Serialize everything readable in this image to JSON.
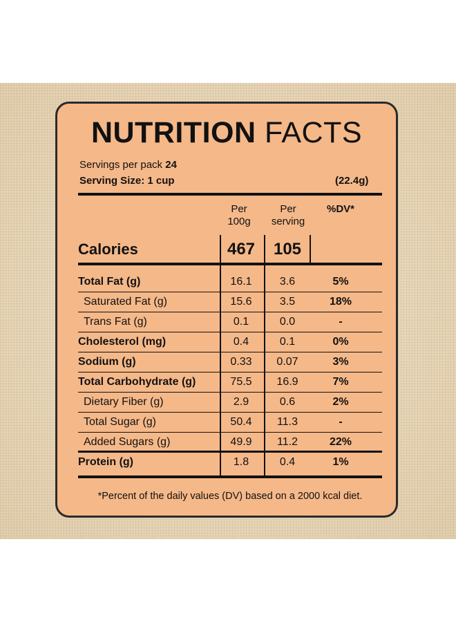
{
  "title": {
    "bold": "NUTRITION",
    "light": "FACTS"
  },
  "servings_per_pack": {
    "label": "Servings per pack",
    "value": "24"
  },
  "serving_size": {
    "label": "Serving Size: 1 cup",
    "grams": "(22.4g)"
  },
  "columns": {
    "per100g": "Per 100g",
    "per_serving": "Per serving",
    "dv": "%DV*"
  },
  "calories": {
    "label": "Calories",
    "per100g": "467",
    "per_serving": "105"
  },
  "rows": [
    {
      "label": "Total Fat (g)",
      "per100g": "16.1",
      "per_serving": "3.6",
      "dv": "5%"
    },
    {
      "label": "Saturated Fat (g)",
      "per100g": "15.6",
      "per_serving": "3.5",
      "dv": "18%"
    },
    {
      "label": "Trans Fat (g)",
      "per100g": "0.1",
      "per_serving": "0.0",
      "dv": "-"
    },
    {
      "label": "Cholesterol (mg)",
      "per100g": "0.4",
      "per_serving": "0.1",
      "dv": "0%"
    },
    {
      "label": "Sodium (g)",
      "per100g": "0.33",
      "per_serving": "0.07",
      "dv": "3%"
    },
    {
      "label": "Total Carbohydrate (g)",
      "per100g": "75.5",
      "per_serving": "16.9",
      "dv": "7%"
    },
    {
      "label": "Dietary Fiber (g)",
      "per100g": "2.9",
      "per_serving": "0.6",
      "dv": "2%"
    },
    {
      "label": "Total Sugar (g)",
      "per100g": "50.4",
      "per_serving": "11.3",
      "dv": "-"
    },
    {
      "label": "Added Sugars (g)",
      "per100g": "49.9",
      "per_serving": "11.2",
      "dv": "22%"
    },
    {
      "label": "Protein (g)",
      "per100g": "1.8",
      "per_serving": "0.4",
      "dv": "1%"
    }
  ],
  "footnote": "*Percent of the daily values (DV) based on a 2000 kcal diet.",
  "colors": {
    "panel": "#f5b889",
    "border": "#2a2a2a",
    "background": "#e9d9bd"
  }
}
